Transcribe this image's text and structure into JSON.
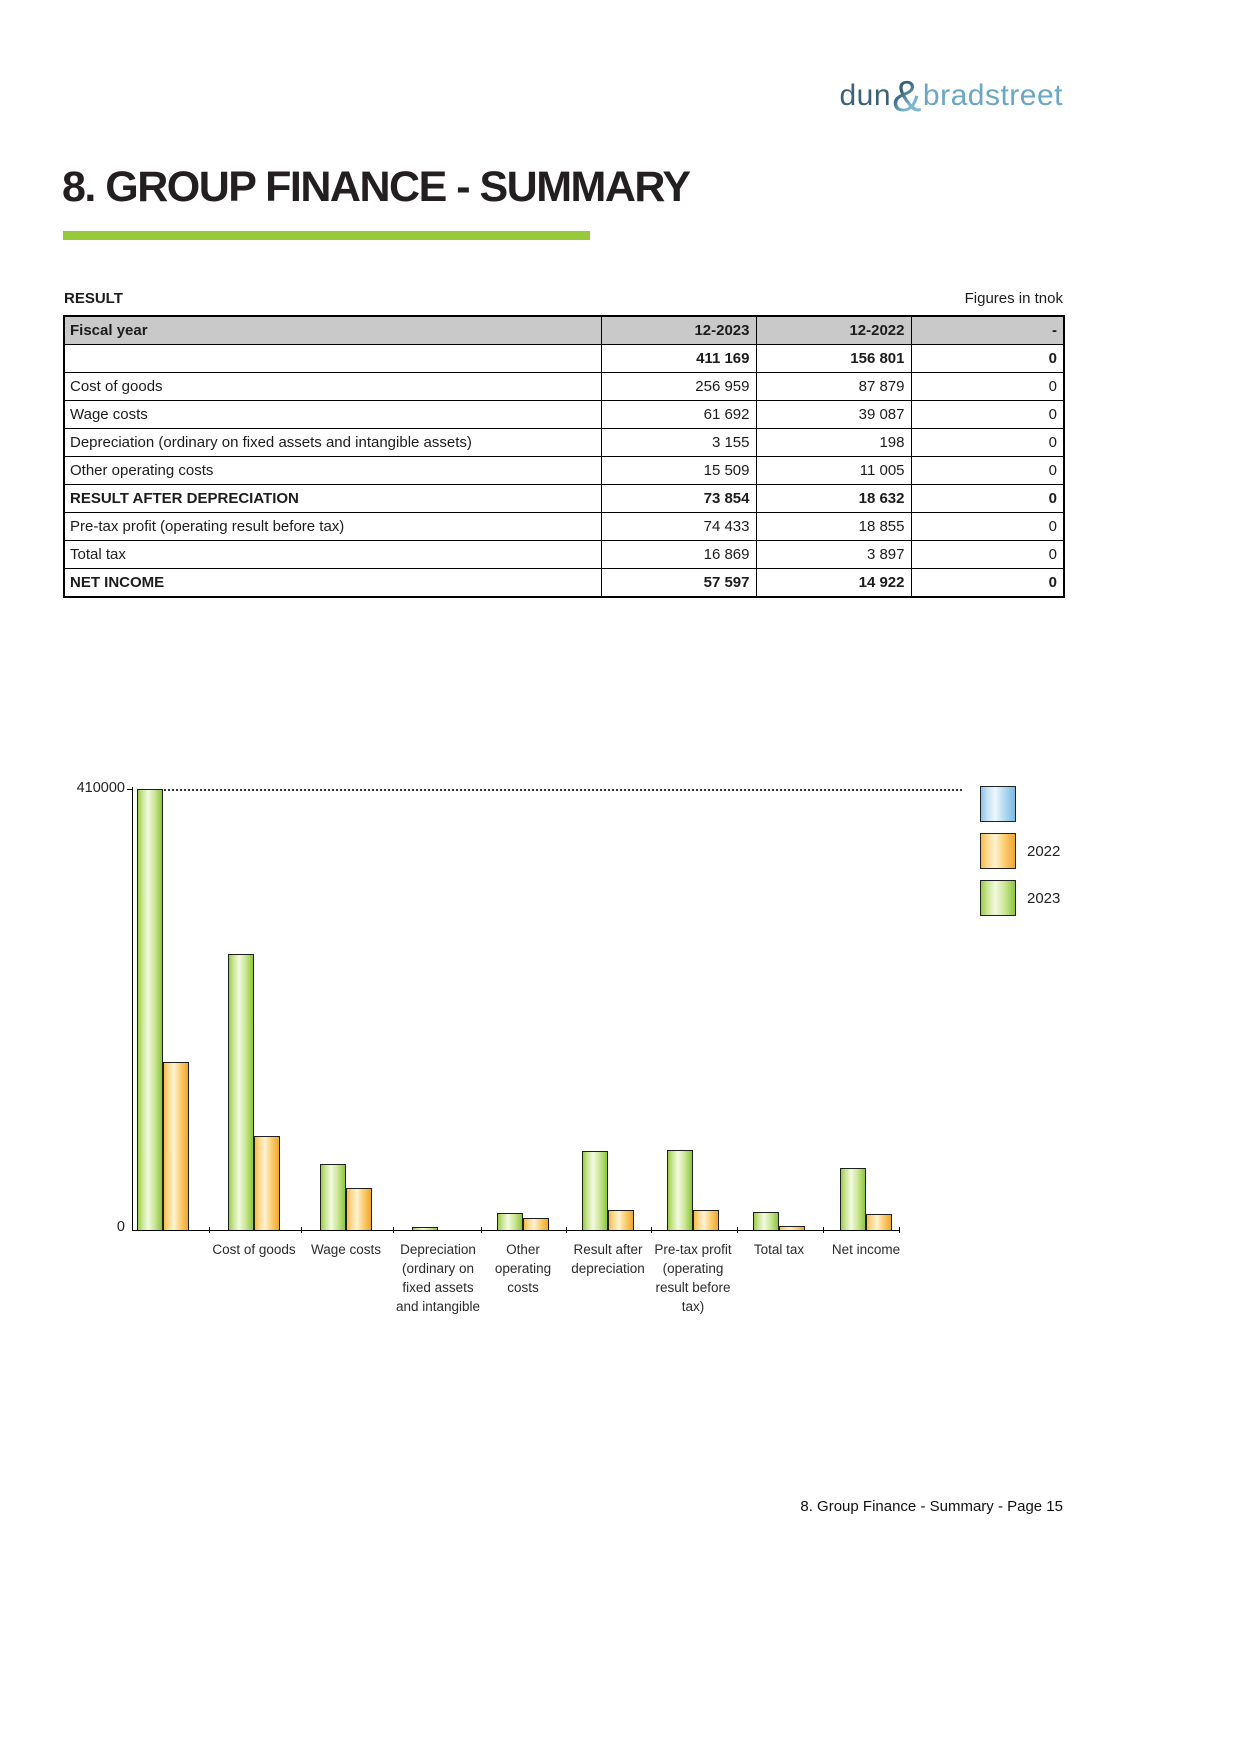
{
  "logo": {
    "part1": "dun",
    "amp": "&",
    "part2": "bradstreet"
  },
  "title": "8. GROUP FINANCE - SUMMARY",
  "section": {
    "label": "RESULT",
    "note": "Figures in tnok"
  },
  "table": {
    "columns": [
      "Fiscal year",
      "12-2023",
      "12-2022",
      "-"
    ],
    "rows": [
      {
        "label": "",
        "v2023": "411 169",
        "v2022": "156 801",
        "v3": "0",
        "bold": true
      },
      {
        "label": "Cost of goods",
        "v2023": "256 959",
        "v2022": "87 879",
        "v3": "0",
        "bold": false
      },
      {
        "label": "Wage costs",
        "v2023": "61 692",
        "v2022": "39 087",
        "v3": "0",
        "bold": false
      },
      {
        "label": "Depreciation (ordinary on fixed assets and intangible assets)",
        "v2023": "3 155",
        "v2022": "198",
        "v3": "0",
        "bold": false
      },
      {
        "label": "Other operating costs",
        "v2023": "15 509",
        "v2022": "11 005",
        "v3": "0",
        "bold": false
      },
      {
        "label": "RESULT AFTER DEPRECIATION",
        "v2023": "73 854",
        "v2022": "18 632",
        "v3": "0",
        "bold": true
      },
      {
        "label": "Pre-tax profit (operating result before tax)",
        "v2023": "74 433",
        "v2022": "18 855",
        "v3": "0",
        "bold": false
      },
      {
        "label": "Total tax",
        "v2023": "16 869",
        "v2022": "3 897",
        "v3": "0",
        "bold": false
      },
      {
        "label": "NET INCOME",
        "v2023": "57 597",
        "v2022": "14 922",
        "v3": "0",
        "bold": true
      }
    ]
  },
  "chart_data": {
    "type": "bar",
    "categories": [
      "",
      "Cost of goods",
      "Wage costs",
      "Depreciation (ordinary on fixed assets and intangible",
      "Other operating costs",
      "Result after depreciation",
      "Pre-tax profit (operating result before tax)",
      "Total tax",
      "Net income"
    ],
    "categories_wrapped": [
      [],
      [
        "Cost of goods"
      ],
      [
        "Wage costs"
      ],
      [
        "Depreciation",
        "(ordinary on",
        "fixed assets",
        "and intangible"
      ],
      [
        "Other",
        "operating",
        "costs"
      ],
      [
        "Result after",
        "depreciation"
      ],
      [
        "Pre-tax profit",
        "(operating",
        "result before",
        "tax)"
      ],
      [
        "Total tax"
      ],
      [
        "Net income"
      ]
    ],
    "series": [
      {
        "name": "2023",
        "color": "green",
        "values": [
          411169,
          256959,
          61692,
          3155,
          15509,
          73854,
          74433,
          16869,
          57597
        ]
      },
      {
        "name": "2022",
        "color": "orange",
        "values": [
          156801,
          87879,
          39087,
          198,
          11005,
          18632,
          18855,
          3897,
          14922
        ]
      }
    ],
    "legend": [
      {
        "label": "",
        "color": "blue"
      },
      {
        "label": "2022",
        "color": "orange"
      },
      {
        "label": "2023",
        "color": "green"
      }
    ],
    "ylim": [
      0,
      410000
    ],
    "yticks": [
      "410000",
      "0"
    ],
    "grid": "dotted line at 410000",
    "legend_position": "right"
  },
  "footer": "8. Group Finance - Summary - Page 15",
  "colors": {
    "accent_green": "#97ca3a",
    "header_gray": "#c9c9c9",
    "logo_dark": "#3b6277",
    "logo_light": "#6ba7c4",
    "bar_green": "#8cc63c",
    "bar_orange": "#f3a52b",
    "legend_blue": "#79b9e0"
  }
}
